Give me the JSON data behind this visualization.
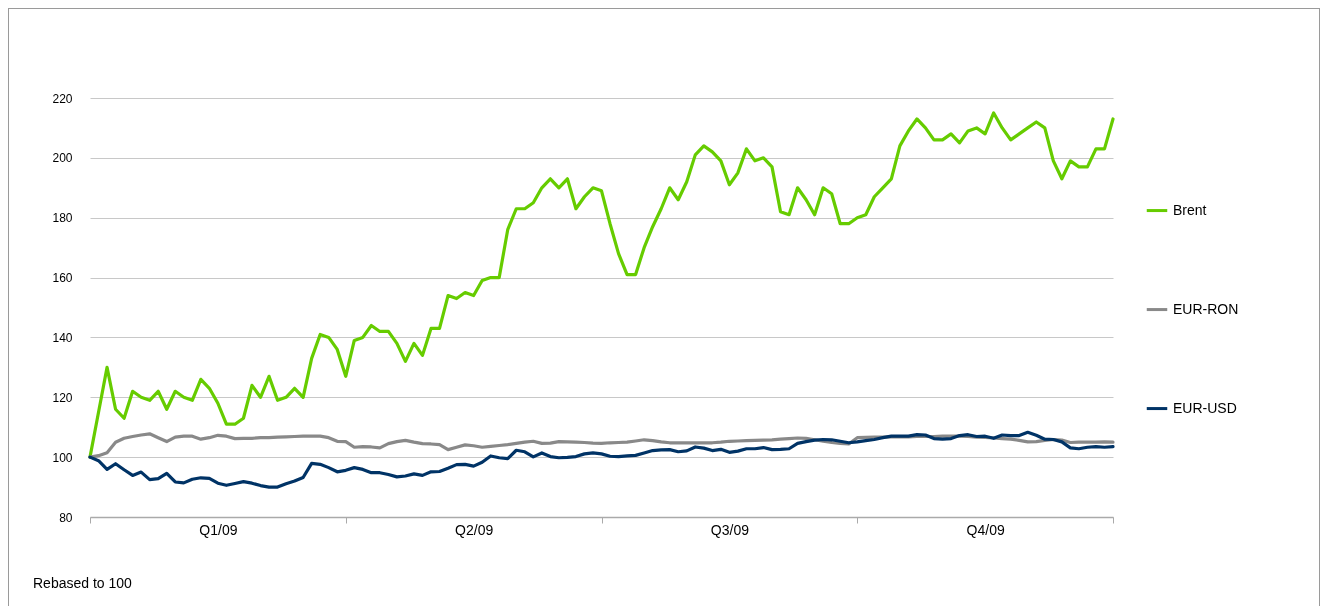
{
  "chart_data": {
    "type": "line",
    "categories": [
      null,
      null,
      null,
      null,
      null,
      null,
      null,
      null,
      null,
      null,
      null,
      null,
      null,
      null,
      null,
      "Q1/09",
      null,
      null,
      null,
      null,
      null,
      null,
      null,
      null,
      null,
      null,
      null,
      null,
      null,
      null,
      null,
      null,
      null,
      null,
      null,
      null,
      null,
      null,
      null,
      null,
      null,
      null,
      null,
      null,
      null,
      "Q2/09",
      null,
      null,
      null,
      null,
      null,
      null,
      null,
      null,
      null,
      null,
      null,
      null,
      null,
      null,
      null,
      null,
      null,
      null,
      null,
      null,
      null,
      null,
      null,
      null,
      null,
      null,
      null,
      null,
      null,
      "Q3/09",
      null,
      null,
      null,
      null,
      null,
      null,
      null,
      null,
      null,
      null,
      null,
      null,
      null,
      null,
      null,
      null,
      null,
      null,
      null,
      null,
      null,
      null,
      null,
      null,
      null,
      null,
      null,
      null,
      null,
      "Q4/09",
      null,
      null,
      null,
      null,
      null,
      null,
      null,
      null,
      null,
      null,
      null,
      null,
      null,
      null,
      null
    ],
    "ylim": [
      80,
      220
    ],
    "yticks": [
      80,
      100,
      120,
      140,
      160,
      180,
      200,
      220
    ],
    "grid": "y",
    "legend": "right",
    "annotations": [
      "Rebased to 100"
    ],
    "series": [
      {
        "name": "Brent",
        "color": "#66cc00",
        "values": [
          100,
          115,
          130,
          116,
          113,
          122,
          120,
          119,
          122,
          116,
          122,
          120,
          119,
          126,
          123,
          118,
          111,
          111,
          113,
          124,
          120,
          127,
          119,
          120,
          123,
          120,
          133,
          141,
          140,
          136,
          127,
          139,
          140,
          144,
          142,
          142,
          138,
          132,
          138,
          134,
          143,
          143,
          154,
          153,
          155,
          154,
          159,
          160,
          160,
          176,
          183,
          183,
          185,
          190,
          193,
          190,
          193,
          183,
          187,
          190,
          189,
          178,
          168,
          161,
          161,
          170,
          177,
          183,
          190,
          186,
          192,
          201,
          204,
          202,
          199,
          191,
          195,
          203,
          199,
          200,
          197,
          182,
          181,
          190,
          186,
          181,
          190,
          188,
          178,
          178,
          180,
          181,
          187,
          190,
          193,
          204,
          209,
          213,
          210,
          206,
          206,
          208,
          205,
          209,
          210,
          208,
          215,
          210,
          206,
          208,
          210,
          212,
          210,
          199,
          193,
          199,
          197,
          197,
          203,
          203,
          213
        ]
      },
      {
        "name": "EUR-RON",
        "color": "#898989",
        "values": [
          100,
          100.5,
          101.5,
          105,
          106.3,
          106.9,
          107.4,
          107.8,
          106.5,
          105.2,
          106.7,
          107,
          107,
          106,
          106.5,
          107.3,
          107,
          106.2,
          106.3,
          106.3,
          106.5,
          106.5,
          106.7,
          106.8,
          106.9,
          107,
          107,
          107,
          106.5,
          105.3,
          105.2,
          103.3,
          103.5,
          103.4,
          103.1,
          104.5,
          105.2,
          105.6,
          105,
          104.5,
          104.4,
          104.2,
          102.5,
          103.3,
          104.1,
          103.8,
          103.3,
          103.6,
          103.9,
          104.2,
          104.6,
          105,
          105.3,
          104.6,
          104.7,
          105.2,
          105.1,
          105,
          104.9,
          104.7,
          104.6,
          104.8,
          104.9,
          105,
          105.4,
          105.8,
          105.5,
          105.1,
          104.8,
          104.8,
          104.8,
          104.8,
          104.8,
          104.8,
          105,
          105.3,
          105.4,
          105.5,
          105.6,
          105.7,
          105.8,
          106,
          106.2,
          106.4,
          106.3,
          105.8,
          105.3,
          104.9,
          104.6,
          104.4,
          106.5,
          106.6,
          106.7,
          106.7,
          106.8,
          106.8,
          106.8,
          106.9,
          106.9,
          106.9,
          107,
          107,
          107,
          106.9,
          106.7,
          106.6,
          106.4,
          106.2,
          106,
          105.6,
          105.1,
          105.2,
          105.6,
          105.9,
          105.7,
          104.9,
          105,
          105,
          105,
          105.1,
          105
        ]
      },
      {
        "name": "EUR-USD",
        "color": "#003366",
        "values": [
          100,
          98.8,
          95.9,
          97.8,
          95.8,
          93.9,
          95,
          92.5,
          92.8,
          94.6,
          91.7,
          91.4,
          92.6,
          93.1,
          92.9,
          91.3,
          90.6,
          91.2,
          91.8,
          91.3,
          90.5,
          90,
          90,
          91.1,
          92,
          93.2,
          97.9,
          97.6,
          96.5,
          95.1,
          95.6,
          96.5,
          95.9,
          94.8,
          94.8,
          94.2,
          93.4,
          93.7,
          94.4,
          93.9,
          95.1,
          95.2,
          96.3,
          97.5,
          97.6,
          97,
          98.3,
          100.4,
          99.8,
          99.5,
          102.3,
          101.8,
          100.1,
          101.4,
          100.2,
          99.8,
          99.9,
          100.2,
          101.1,
          101.4,
          101.1,
          100.3,
          100.2,
          100.4,
          100.6,
          101.4,
          102.2,
          102.4,
          102.5,
          101.8,
          102.1,
          103.4,
          103,
          102.2,
          102.6,
          101.6,
          102,
          102.8,
          102.8,
          103.2,
          102.5,
          102.6,
          102.8,
          104.6,
          105.2,
          105.7,
          105.9,
          105.8,
          105.3,
          104.8,
          105.1,
          105.5,
          105.9,
          106.5,
          107,
          107,
          107,
          107.5,
          107.4,
          106.2,
          106,
          106.2,
          107.2,
          107.5,
          106.9,
          107,
          106.3,
          107.4,
          107.2,
          107.2,
          108.3,
          107.3,
          106,
          105.9,
          105.1,
          103.1,
          102.8,
          103.3,
          103.5,
          103.3,
          103.5
        ]
      }
    ]
  }
}
